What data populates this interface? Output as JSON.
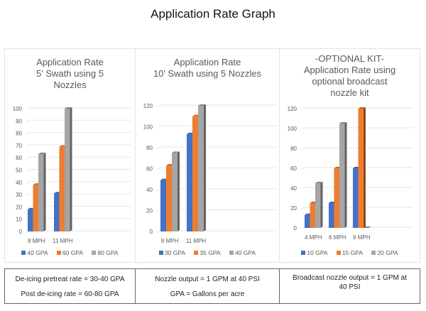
{
  "page_title": "Application Rate Graph",
  "colors": {
    "blue": "#4472C4",
    "orange": "#ED7D31",
    "gray": "#A5A5A5"
  },
  "chart_data": [
    {
      "type": "bar",
      "title_lines": [
        "Application Rate",
        "5' Swath using 5",
        "Nozzles"
      ],
      "categories": [
        "8 MPH",
        "11 MPH"
      ],
      "series": [
        {
          "name": "40 GPA",
          "color": "#4472C4",
          "values": [
            18,
            31
          ]
        },
        {
          "name": "60 GPA",
          "color": "#ED7D31",
          "values": [
            38,
            69
          ]
        },
        {
          "name": "80 GPA",
          "color": "#A5A5A5",
          "values": [
            63,
            100
          ]
        }
      ],
      "ylim": [
        0,
        100
      ],
      "yticks": [
        "0",
        "10",
        "20",
        "30",
        "40",
        "50",
        "60",
        "70",
        "80",
        "90",
        "100"
      ],
      "xlabel": "",
      "ylabel": "",
      "grid": true,
      "legend": "bottom"
    },
    {
      "type": "bar",
      "title_lines": [
        "Application Rate",
        "10' Swath using 5 Nozzles"
      ],
      "categories": [
        "8 MPH",
        "11 MPH"
      ],
      "series": [
        {
          "name": "30 GPA",
          "color": "#4472C4",
          "values": [
            49,
            93
          ]
        },
        {
          "name": "35 GPA",
          "color": "#ED7D31",
          "values": [
            63,
            110
          ]
        },
        {
          "name": "40 GPA",
          "color": "#A5A5A5",
          "values": [
            75,
            120
          ]
        }
      ],
      "ylim": [
        0,
        120
      ],
      "yticks": [
        "0",
        "20",
        "40",
        "60",
        "80",
        "100",
        "120"
      ],
      "xlabel": "",
      "ylabel": "",
      "grid": true,
      "legend": "bottom"
    },
    {
      "type": "bar",
      "title_lines": [
        "-OPTIONAL KIT-",
        "Application Rate using",
        "optional broadcast",
        "nozzle kit"
      ],
      "categories": [
        "4 MPH",
        "6 MPH",
        "9 MPH"
      ],
      "series": [
        {
          "name": "10 GPA",
          "color": "#4472C4",
          "values": [
            13,
            25,
            60
          ]
        },
        {
          "name": "15 GPA",
          "color": "#ED7D31",
          "values": [
            25,
            60,
            120
          ]
        },
        {
          "name": "20 GPA",
          "color": "#A5A5A5",
          "values": [
            45,
            105,
            0
          ]
        }
      ],
      "ylim": [
        0,
        120
      ],
      "yticks": [
        "0",
        "20",
        "40",
        "60",
        "80",
        "100",
        "120"
      ],
      "xlabel": "",
      "ylabel": "",
      "grid": true,
      "legend": "bottom"
    }
  ],
  "notes": [
    {
      "lines": [
        "De-icing pretreat rate = 30-40 GPA",
        "Post de-icing rate = 60-80 GPA"
      ]
    },
    {
      "lines": [
        "Nozzle output = 1 GPM at 40 PSI",
        "GPA = Gallons per acre"
      ]
    },
    {
      "lines": [
        "Broadcast nozzle output = 1 GPM at",
        "40 PSI"
      ]
    }
  ]
}
